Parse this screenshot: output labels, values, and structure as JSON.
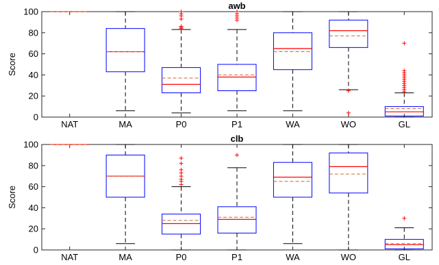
{
  "chart_data": [
    {
      "type": "box",
      "title": "awb",
      "ylabel": "Score",
      "xlabel": "",
      "ylim": [
        0,
        100
      ],
      "yticks": [
        0,
        20,
        40,
        60,
        80,
        100
      ],
      "categories": [
        "NAT",
        "MA",
        "P0",
        "P1",
        "WA",
        "WO",
        "GL"
      ],
      "boxes": [
        {
          "q1": 100,
          "median": 100,
          "mean": 100,
          "q3": 100,
          "whisker_low": 100,
          "whisker_high": 100,
          "outliers": []
        },
        {
          "q1": 43,
          "median": 62,
          "mean": 62,
          "q3": 84,
          "whisker_low": 6,
          "whisker_high": 100,
          "outliers": []
        },
        {
          "q1": 23,
          "median": 31,
          "mean": 37,
          "q3": 47,
          "whisker_low": 4,
          "whisker_high": 83,
          "outliers": [
            84,
            85,
            86,
            93,
            96,
            98,
            100
          ]
        },
        {
          "q1": 25,
          "median": 38,
          "mean": 40,
          "q3": 50,
          "whisker_low": 6,
          "whisker_high": 83,
          "outliers": [
            92,
            94,
            96,
            98,
            100
          ]
        },
        {
          "q1": 45,
          "median": 65,
          "mean": 62,
          "q3": 80,
          "whisker_low": 6,
          "whisker_high": 100,
          "outliers": []
        },
        {
          "q1": 66,
          "median": 82,
          "mean": 77,
          "q3": 92,
          "whisker_low": 26,
          "whisker_high": 100,
          "outliers": [
            25,
            4
          ]
        },
        {
          "q1": 1,
          "median": 5,
          "mean": 8,
          "q3": 10,
          "whisker_low": 0,
          "whisker_high": 23,
          "outliers": [
            24,
            26,
            28,
            30,
            32,
            34,
            36,
            38,
            40,
            42,
            44,
            70
          ]
        }
      ]
    },
    {
      "type": "box",
      "title": "clb",
      "ylabel": "Score",
      "xlabel": "",
      "ylim": [
        0,
        100
      ],
      "yticks": [
        0,
        20,
        40,
        60,
        80,
        100
      ],
      "categories": [
        "NAT",
        "MA",
        "P0",
        "P1",
        "WA",
        "WO",
        "GL"
      ],
      "boxes": [
        {
          "q1": 100,
          "median": 100,
          "mean": 100,
          "q3": 100,
          "whisker_low": 100,
          "whisker_high": 100,
          "outliers": []
        },
        {
          "q1": 50,
          "median": 70,
          "mean": 70,
          "q3": 90,
          "whisker_low": 6,
          "whisker_high": 100,
          "outliers": []
        },
        {
          "q1": 15,
          "median": 25,
          "mean": 28,
          "q3": 34,
          "whisker_low": 0,
          "whisker_high": 60,
          "outliers": [
            62,
            65,
            67,
            70,
            73,
            76,
            82,
            87
          ]
        },
        {
          "q1": 16,
          "median": 29,
          "mean": 31,
          "q3": 41,
          "whisker_low": 0,
          "whisker_high": 78,
          "outliers": [
            90
          ]
        },
        {
          "q1": 50,
          "median": 69,
          "mean": 65,
          "q3": 83,
          "whisker_low": 6,
          "whisker_high": 100,
          "outliers": []
        },
        {
          "q1": 54,
          "median": 79,
          "mean": 72,
          "q3": 92,
          "whisker_low": 0,
          "whisker_high": 100,
          "outliers": []
        },
        {
          "q1": 1,
          "median": 5,
          "mean": 6,
          "q3": 10,
          "whisker_low": 0,
          "whisker_high": 21,
          "outliers": [
            30
          ]
        }
      ]
    }
  ],
  "colors": {
    "box": "#0000ff",
    "median": "#ff0000",
    "mean": "#cc6633",
    "outlier": "#ff0000",
    "whisker": "#000000"
  }
}
